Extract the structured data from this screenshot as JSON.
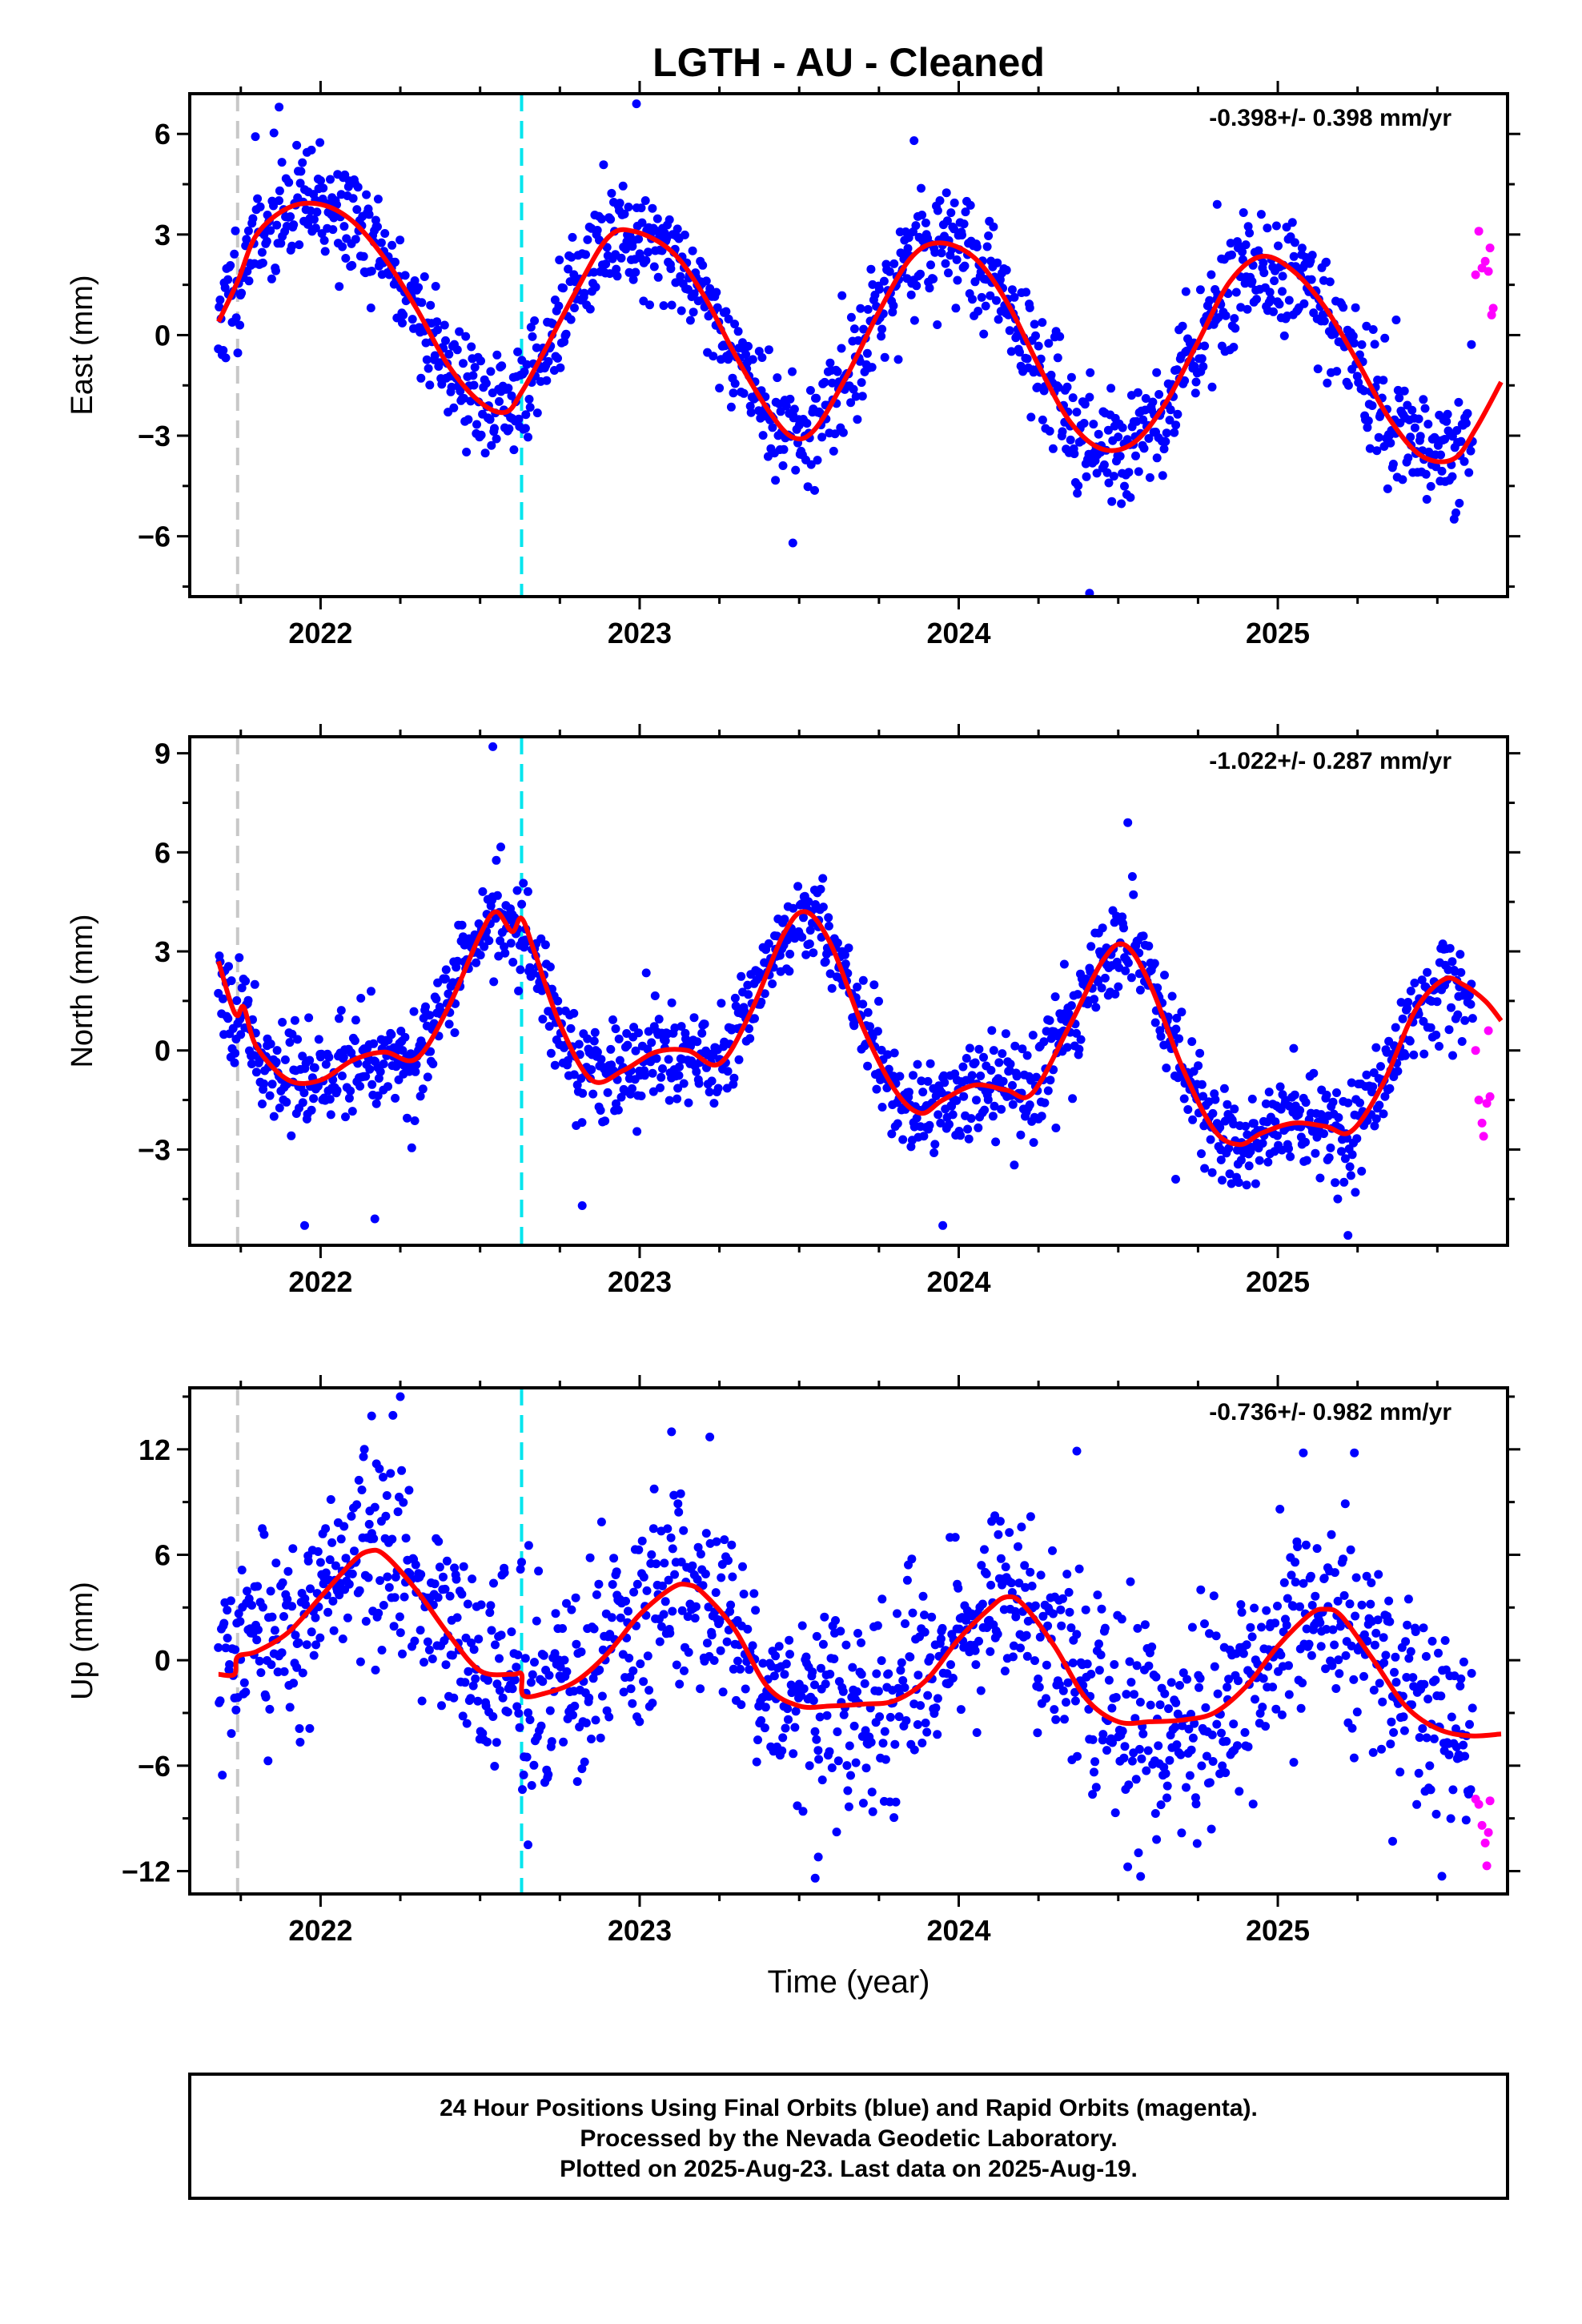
{
  "title": "LGTH  - AU - Cleaned",
  "xlabel": "Time (year)",
  "footer": [
    "24 Hour Positions Using Final Orbits (blue) and Rapid Orbits (magenta).",
    "Processed by the Nevada Geodetic Laboratory.",
    "Plotted on 2025-Aug-23. Last data on 2025-Aug-19."
  ],
  "colors": {
    "final": "#0000ff",
    "rapid": "#ff00ff",
    "model": "#ff0000",
    "antenna_line": "#c8c8c8",
    "equipment_line": "#00e5ee"
  },
  "chart_data": [
    {
      "type": "scatter",
      "component": "east",
      "ylabel": "East (mm)",
      "rate_label": "-0.398+/- 0.398 mm/yr",
      "xlim": [
        2021.59,
        2025.72
      ],
      "ylim": [
        -7.8,
        7.2
      ],
      "xticks": [
        2022,
        2023,
        2024,
        2025
      ],
      "yticks": [
        -6,
        -3,
        0,
        3,
        6
      ],
      "ytick_labels": [
        "−6",
        "−3",
        "0",
        "3",
        "6"
      ],
      "vlines": [
        {
          "x": 2021.74,
          "kind": "antenna"
        },
        {
          "x": 2022.63,
          "kind": "equipment"
        }
      ],
      "model_curve": [
        [
          2021.68,
          0.4
        ],
        [
          2021.74,
          1.6
        ],
        [
          2021.8,
          3.0
        ],
        [
          2021.9,
          3.8
        ],
        [
          2022.0,
          3.9
        ],
        [
          2022.1,
          3.4
        ],
        [
          2022.2,
          2.3
        ],
        [
          2022.3,
          0.8
        ],
        [
          2022.4,
          -0.9
        ],
        [
          2022.5,
          -2.0
        ],
        [
          2022.58,
          -2.3
        ],
        [
          2022.63,
          -1.7
        ],
        [
          2022.7,
          -0.5
        ],
        [
          2022.8,
          1.3
        ],
        [
          2022.9,
          2.9
        ],
        [
          2022.98,
          3.1
        ],
        [
          2023.1,
          2.5
        ],
        [
          2023.2,
          1.2
        ],
        [
          2023.3,
          -0.6
        ],
        [
          2023.4,
          -2.2
        ],
        [
          2023.48,
          -3.05
        ],
        [
          2023.55,
          -2.8
        ],
        [
          2023.65,
          -1.2
        ],
        [
          2023.75,
          0.7
        ],
        [
          2023.85,
          2.3
        ],
        [
          2023.94,
          2.75
        ],
        [
          2024.05,
          2.3
        ],
        [
          2024.15,
          1.0
        ],
        [
          2024.25,
          -0.9
        ],
        [
          2024.35,
          -2.6
        ],
        [
          2024.45,
          -3.4
        ],
        [
          2024.55,
          -3.2
        ],
        [
          2024.65,
          -2.0
        ],
        [
          2024.75,
          -0.2
        ],
        [
          2024.85,
          1.6
        ],
        [
          2024.95,
          2.35
        ],
        [
          2025.05,
          1.9
        ],
        [
          2025.15,
          0.8
        ],
        [
          2025.25,
          -0.8
        ],
        [
          2025.35,
          -2.5
        ],
        [
          2025.45,
          -3.6
        ],
        [
          2025.55,
          -3.7
        ],
        [
          2025.62,
          -2.8
        ],
        [
          2025.7,
          -1.4
        ]
      ],
      "final_series": {
        "start": 2021.68,
        "end": 2025.61,
        "count": 1350,
        "noise": 0.85,
        "seed": 11,
        "outliers": [
          [
            2021.87,
            6.8
          ],
          [
            2022.99,
            6.9
          ],
          [
            2023.86,
            5.8
          ],
          [
            2024.41,
            -7.7
          ],
          [
            2024.81,
            3.9
          ],
          [
            2023.48,
            -6.2
          ]
        ]
      },
      "rapid": [
        [
          2025.62,
          1.8
        ],
        [
          2025.63,
          3.1
        ],
        [
          2025.64,
          2.0
        ],
        [
          2025.65,
          2.2
        ],
        [
          2025.66,
          1.9
        ],
        [
          2025.67,
          0.6
        ],
        [
          2025.675,
          0.8
        ],
        [
          2025.665,
          2.6
        ]
      ]
    },
    {
      "type": "scatter",
      "component": "north",
      "ylabel": "North (mm)",
      "rate_label": "-1.022+/- 0.287 mm/yr",
      "xlim": [
        2021.59,
        2025.72
      ],
      "ylim": [
        -5.9,
        9.5
      ],
      "xticks": [
        2022,
        2023,
        2024,
        2025
      ],
      "yticks": [
        -3,
        0,
        3,
        6,
        9
      ],
      "ytick_labels": [
        "−3",
        "0",
        "3",
        "6",
        "9"
      ],
      "vlines": [
        {
          "x": 2021.74,
          "kind": "antenna"
        },
        {
          "x": 2022.63,
          "kind": "equipment"
        }
      ],
      "model_curve": [
        [
          2021.68,
          2.7
        ],
        [
          2021.72,
          1.4
        ],
        [
          2021.74,
          1.05
        ],
        [
          2021.76,
          1.3
        ],
        [
          2021.8,
          0.1
        ],
        [
          2021.9,
          -0.9
        ],
        [
          2022.0,
          -0.9
        ],
        [
          2022.1,
          -0.3
        ],
        [
          2022.2,
          -0.05
        ],
        [
          2022.3,
          -0.25
        ],
        [
          2022.4,
          1.3
        ],
        [
          2022.5,
          3.5
        ],
        [
          2022.55,
          4.2
        ],
        [
          2022.6,
          3.6
        ],
        [
          2022.63,
          4.0
        ],
        [
          2022.67,
          3.0
        ],
        [
          2022.75,
          0.8
        ],
        [
          2022.85,
          -0.9
        ],
        [
          2022.95,
          -0.6
        ],
        [
          2023.05,
          -0.05
        ],
        [
          2023.15,
          0.0
        ],
        [
          2023.25,
          -0.4
        ],
        [
          2023.35,
          1.2
        ],
        [
          2023.45,
          3.5
        ],
        [
          2023.52,
          4.2
        ],
        [
          2023.6,
          3.2
        ],
        [
          2023.7,
          0.7
        ],
        [
          2023.8,
          -1.2
        ],
        [
          2023.88,
          -1.9
        ],
        [
          2023.95,
          -1.5
        ],
        [
          2024.05,
          -1.05
        ],
        [
          2024.15,
          -1.2
        ],
        [
          2024.23,
          -1.3
        ],
        [
          2024.35,
          0.8
        ],
        [
          2024.45,
          2.7
        ],
        [
          2024.52,
          3.2
        ],
        [
          2024.6,
          2.0
        ],
        [
          2024.7,
          -0.5
        ],
        [
          2024.8,
          -2.4
        ],
        [
          2024.88,
          -2.85
        ],
        [
          2024.95,
          -2.5
        ],
        [
          2025.05,
          -2.2
        ],
        [
          2025.15,
          -2.3
        ],
        [
          2025.23,
          -2.45
        ],
        [
          2025.33,
          -1.0
        ],
        [
          2025.43,
          1.2
        ],
        [
          2025.52,
          2.15
        ],
        [
          2025.58,
          2.0
        ],
        [
          2025.65,
          1.5
        ],
        [
          2025.7,
          0.9
        ]
      ],
      "final_series": {
        "start": 2021.68,
        "end": 2025.61,
        "count": 1350,
        "noise": 0.75,
        "seed": 23,
        "outliers": [
          [
            2022.54,
            9.2
          ],
          [
            2024.53,
            6.9
          ],
          [
            2021.95,
            -5.3
          ],
          [
            2022.17,
            -5.1
          ],
          [
            2022.82,
            -4.7
          ],
          [
            2023.95,
            -5.3
          ],
          [
            2025.22,
            -5.6
          ],
          [
            2024.68,
            -3.9
          ]
        ]
      },
      "rapid": [
        [
          2025.62,
          0.0
        ],
        [
          2025.63,
          -1.5
        ],
        [
          2025.64,
          -2.2
        ],
        [
          2025.645,
          -2.6
        ],
        [
          2025.655,
          -1.6
        ],
        [
          2025.665,
          -1.4
        ],
        [
          2025.66,
          0.6
        ]
      ]
    },
    {
      "type": "scatter",
      "component": "up",
      "ylabel": "Up (mm)",
      "rate_label": "-0.736+/- 0.982 mm/yr",
      "xlim": [
        2021.59,
        2025.72
      ],
      "ylim": [
        -13.3,
        15.5
      ],
      "xticks": [
        2022,
        2023,
        2024,
        2025
      ],
      "yticks": [
        -12,
        -6,
        0,
        6,
        12
      ],
      "ytick_labels": [
        "−12",
        "−6",
        "0",
        "6",
        "12"
      ],
      "vlines": [
        {
          "x": 2021.74,
          "kind": "antenna"
        },
        {
          "x": 2022.63,
          "kind": "equipment"
        }
      ],
      "model_curve": [
        [
          2021.68,
          -0.8
        ],
        [
          2021.73,
          -0.8
        ],
        [
          2021.74,
          0.2
        ],
        [
          2021.8,
          0.5
        ],
        [
          2021.9,
          1.6
        ],
        [
          2022.0,
          3.6
        ],
        [
          2022.1,
          5.6
        ],
        [
          2022.15,
          6.2
        ],
        [
          2022.2,
          6.0
        ],
        [
          2022.3,
          4.0
        ],
        [
          2022.4,
          1.5
        ],
        [
          2022.5,
          -0.6
        ],
        [
          2022.6,
          -0.8
        ],
        [
          2022.63,
          -0.8
        ],
        [
          2022.635,
          -2.0
        ],
        [
          2022.7,
          -1.9
        ],
        [
          2022.8,
          -1.2
        ],
        [
          2022.9,
          0.4
        ],
        [
          2023.0,
          2.6
        ],
        [
          2023.1,
          4.1
        ],
        [
          2023.15,
          4.3
        ],
        [
          2023.2,
          3.8
        ],
        [
          2023.3,
          1.7
        ],
        [
          2023.4,
          -1.5
        ],
        [
          2023.5,
          -2.6
        ],
        [
          2023.6,
          -2.6
        ],
        [
          2023.7,
          -2.5
        ],
        [
          2023.8,
          -2.3
        ],
        [
          2023.9,
          -1.1
        ],
        [
          2024.0,
          1.2
        ],
        [
          2024.1,
          3.0
        ],
        [
          2024.15,
          3.6
        ],
        [
          2024.2,
          3.2
        ],
        [
          2024.3,
          0.8
        ],
        [
          2024.4,
          -2.2
        ],
        [
          2024.5,
          -3.5
        ],
        [
          2024.6,
          -3.5
        ],
        [
          2024.7,
          -3.4
        ],
        [
          2024.8,
          -3.0
        ],
        [
          2024.9,
          -1.5
        ],
        [
          2025.0,
          0.8
        ],
        [
          2025.1,
          2.6
        ],
        [
          2025.15,
          2.9
        ],
        [
          2025.2,
          2.5
        ],
        [
          2025.3,
          0.0
        ],
        [
          2025.4,
          -2.6
        ],
        [
          2025.5,
          -3.9
        ],
        [
          2025.6,
          -4.3
        ],
        [
          2025.7,
          -4.2
        ]
      ],
      "final_series": {
        "start": 2021.68,
        "end": 2025.61,
        "count": 1350,
        "noise": 2.8,
        "seed": 37,
        "outliers": [
          [
            2022.25,
            15.0
          ],
          [
            2022.16,
            13.9
          ],
          [
            2023.1,
            13.0
          ],
          [
            2023.22,
            12.7
          ],
          [
            2024.37,
            11.9
          ],
          [
            2025.08,
            11.8
          ],
          [
            2025.24,
            11.8
          ],
          [
            2023.55,
            -12.4
          ],
          [
            2024.57,
            -12.3
          ],
          [
            2023.56,
            -11.2
          ],
          [
            2024.62,
            -10.2
          ],
          [
            2022.65,
            -10.5
          ],
          [
            2025.36,
            -10.3
          ]
        ]
      },
      "rapid": [
        [
          2025.62,
          -7.9
        ],
        [
          2025.63,
          -8.2
        ],
        [
          2025.64,
          -9.4
        ],
        [
          2025.65,
          -10.4
        ],
        [
          2025.655,
          -11.7
        ],
        [
          2025.665,
          -8.0
        ],
        [
          2025.66,
          -9.8
        ]
      ]
    }
  ]
}
